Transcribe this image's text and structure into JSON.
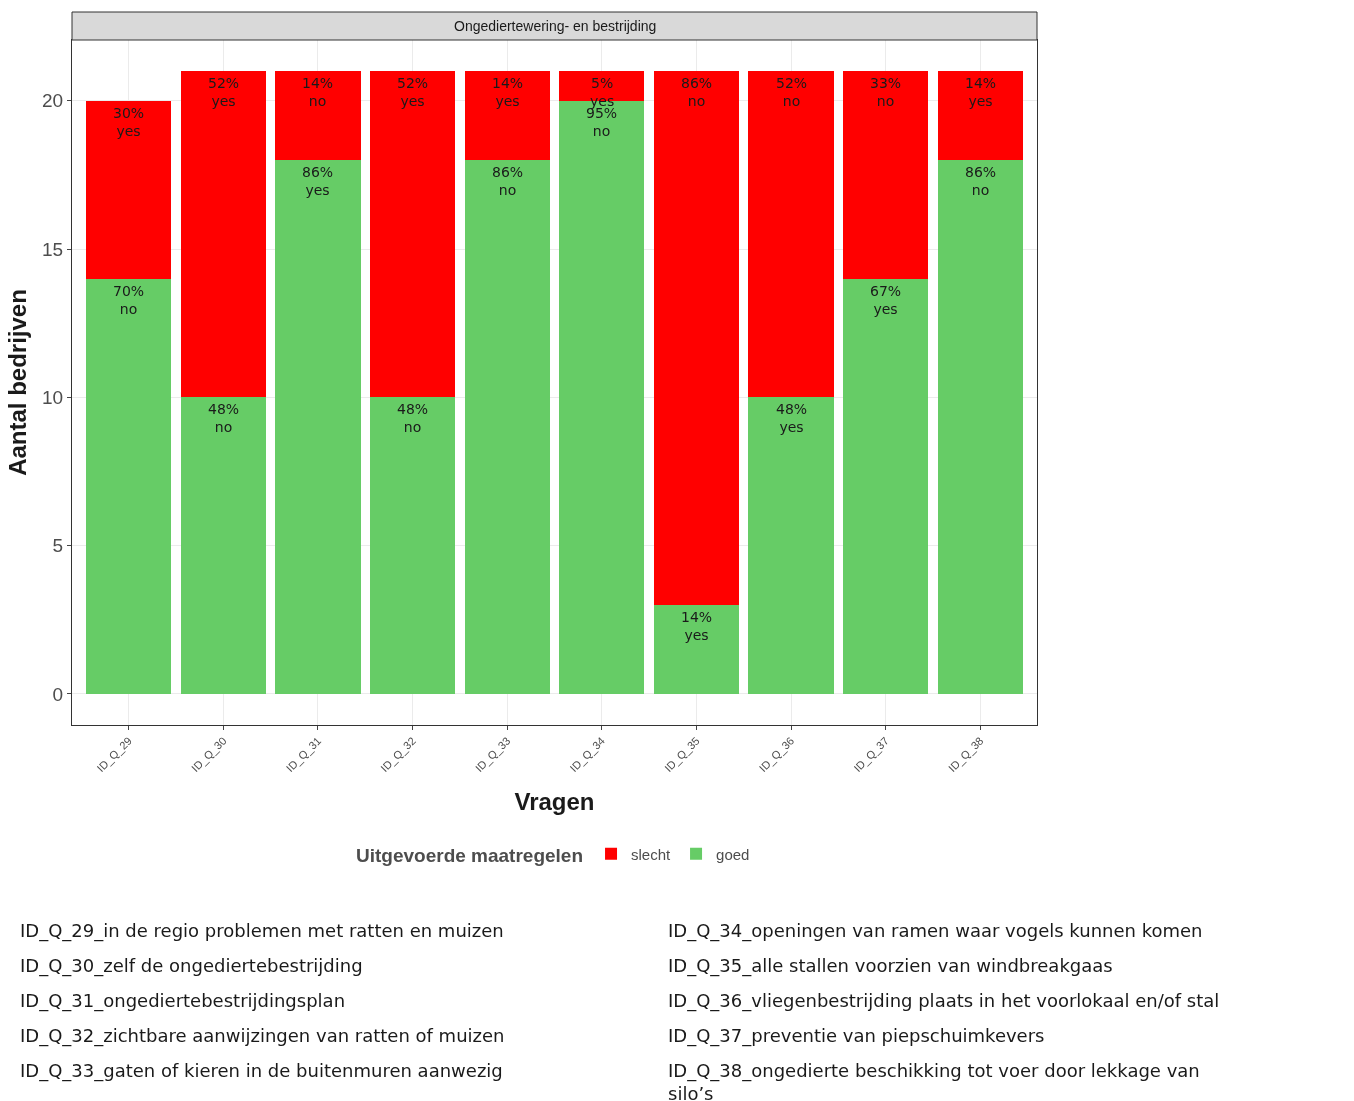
{
  "chart_data": {
    "type": "bar",
    "stacked": true,
    "title": "Ongediertewering- en bestrijding",
    "xlabel": "Vragen",
    "ylabel": "Aantal bedrijven",
    "legend_title": "Uitgevoerde maatregelen",
    "categories": [
      "ID_Q_29",
      "ID_Q_30",
      "ID_Q_31",
      "ID_Q_32",
      "ID_Q_33",
      "ID_Q_34",
      "ID_Q_35",
      "ID_Q_36",
      "ID_Q_37",
      "ID_Q_38"
    ],
    "series": [
      {
        "name": "goed",
        "color": "#66cc66",
        "values": [
          14,
          10,
          18,
          10,
          18,
          20,
          3,
          10,
          14,
          18
        ]
      },
      {
        "name": "slecht",
        "color": "#ff0000",
        "values": [
          6,
          11,
          3,
          11,
          3,
          1,
          18,
          11,
          7,
          3
        ]
      }
    ],
    "ylim": [
      -1.05,
      22.05
    ],
    "yticks": [
      0,
      5,
      10,
      15,
      20
    ],
    "grid": true,
    "legend": "bottom",
    "annotations": [
      {
        "text": "70%\nno",
        "x": "ID_Q_29",
        "y": 14
      },
      {
        "text": "48%\nno",
        "x": "ID_Q_30",
        "y": 10
      },
      {
        "text": "86%\nyes",
        "x": "ID_Q_31",
        "y": 18
      },
      {
        "text": "48%\nno",
        "x": "ID_Q_32",
        "y": 10
      },
      {
        "text": "86%\nno",
        "x": "ID_Q_33",
        "y": 18
      },
      {
        "text": "95%\nno",
        "x": "ID_Q_34",
        "y": 20
      },
      {
        "text": "14%\nyes",
        "x": "ID_Q_35",
        "y": 3
      },
      {
        "text": "48%\nyes",
        "x": "ID_Q_36",
        "y": 10
      },
      {
        "text": "67%\nyes",
        "x": "ID_Q_37",
        "y": 14
      },
      {
        "text": "86%\nno",
        "x": "ID_Q_38",
        "y": 18
      },
      {
        "text": "30%\nyes",
        "x": "ID_Q_29",
        "y": 20
      },
      {
        "text": "52%\nyes",
        "x": "ID_Q_30",
        "y": 21
      },
      {
        "text": "14%\nno",
        "x": "ID_Q_31",
        "y": 21
      },
      {
        "text": "52%\nyes",
        "x": "ID_Q_32",
        "y": 21
      },
      {
        "text": "14%\nyes",
        "x": "ID_Q_33",
        "y": 21
      },
      {
        "text": "5%\nyes",
        "x": "ID_Q_34",
        "y": 21
      },
      {
        "text": "86%\nno",
        "x": "ID_Q_35",
        "y": 21
      },
      {
        "text": "52%\nno",
        "x": "ID_Q_36",
        "y": 21
      },
      {
        "text": "33%\nno",
        "x": "ID_Q_37",
        "y": 21
      },
      {
        "text": "14%\nyes",
        "x": "ID_Q_38",
        "y": 21
      },
      "ID_Q_29_in de regio problemen met ratten en muizen",
      "ID_Q_30_zelf de ongediertebestrijding",
      "ID_Q_31_ongediertebestrijdingsplan",
      "ID_Q_32_zichtbare aanwijzingen van ratten of muizen",
      "ID_Q_33_gaten of kieren in de buitenmuren aanwezig",
      "ID_Q_34_openingen van ramen waar vogels kunnen komen",
      "ID_Q_35_alle stallen voorzien van windbreakgaas",
      "ID_Q_36_vliegenbestrijding plaats in het voorlokaal en/of stal",
      "ID_Q_37_preventie van piepschuimkevers",
      "ID_Q_38_ongedierte beschikking tot voer door lekkage van silo’s"
    ]
  }
}
